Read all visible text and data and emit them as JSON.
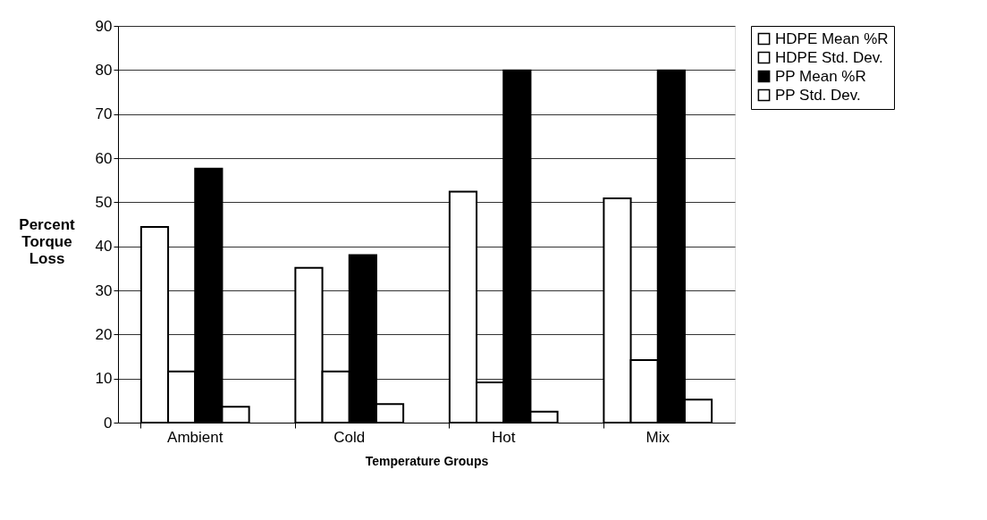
{
  "chart_data": {
    "type": "bar",
    "xlabel": "Temperature Groups",
    "ylabel": "Percent Torque Loss",
    "categories": [
      "Ambient",
      "Cold",
      "Hot",
      "Mix"
    ],
    "series": [
      {
        "name": "HDPE Mean %R",
        "color": "#ffffff",
        "values": [
          44.4,
          35.1,
          52.4,
          50.9
        ]
      },
      {
        "name": "HDPE Std. Dev.",
        "color": "#ffffff",
        "values": [
          11.6,
          11.6,
          9.1,
          14.2
        ]
      },
      {
        "name": "PP Mean %R",
        "color": "#000000",
        "values": [
          57.6,
          38.0,
          79.9,
          79.9
        ]
      },
      {
        "name": "PP Std. Dev.",
        "color": "#ffffff",
        "values": [
          3.6,
          4.2,
          2.5,
          5.2
        ]
      }
    ],
    "ylim": [
      0,
      90
    ],
    "yticks": [
      0,
      10,
      20,
      30,
      40,
      50,
      60,
      70,
      80,
      90
    ],
    "grid": "y",
    "legend": "right"
  }
}
